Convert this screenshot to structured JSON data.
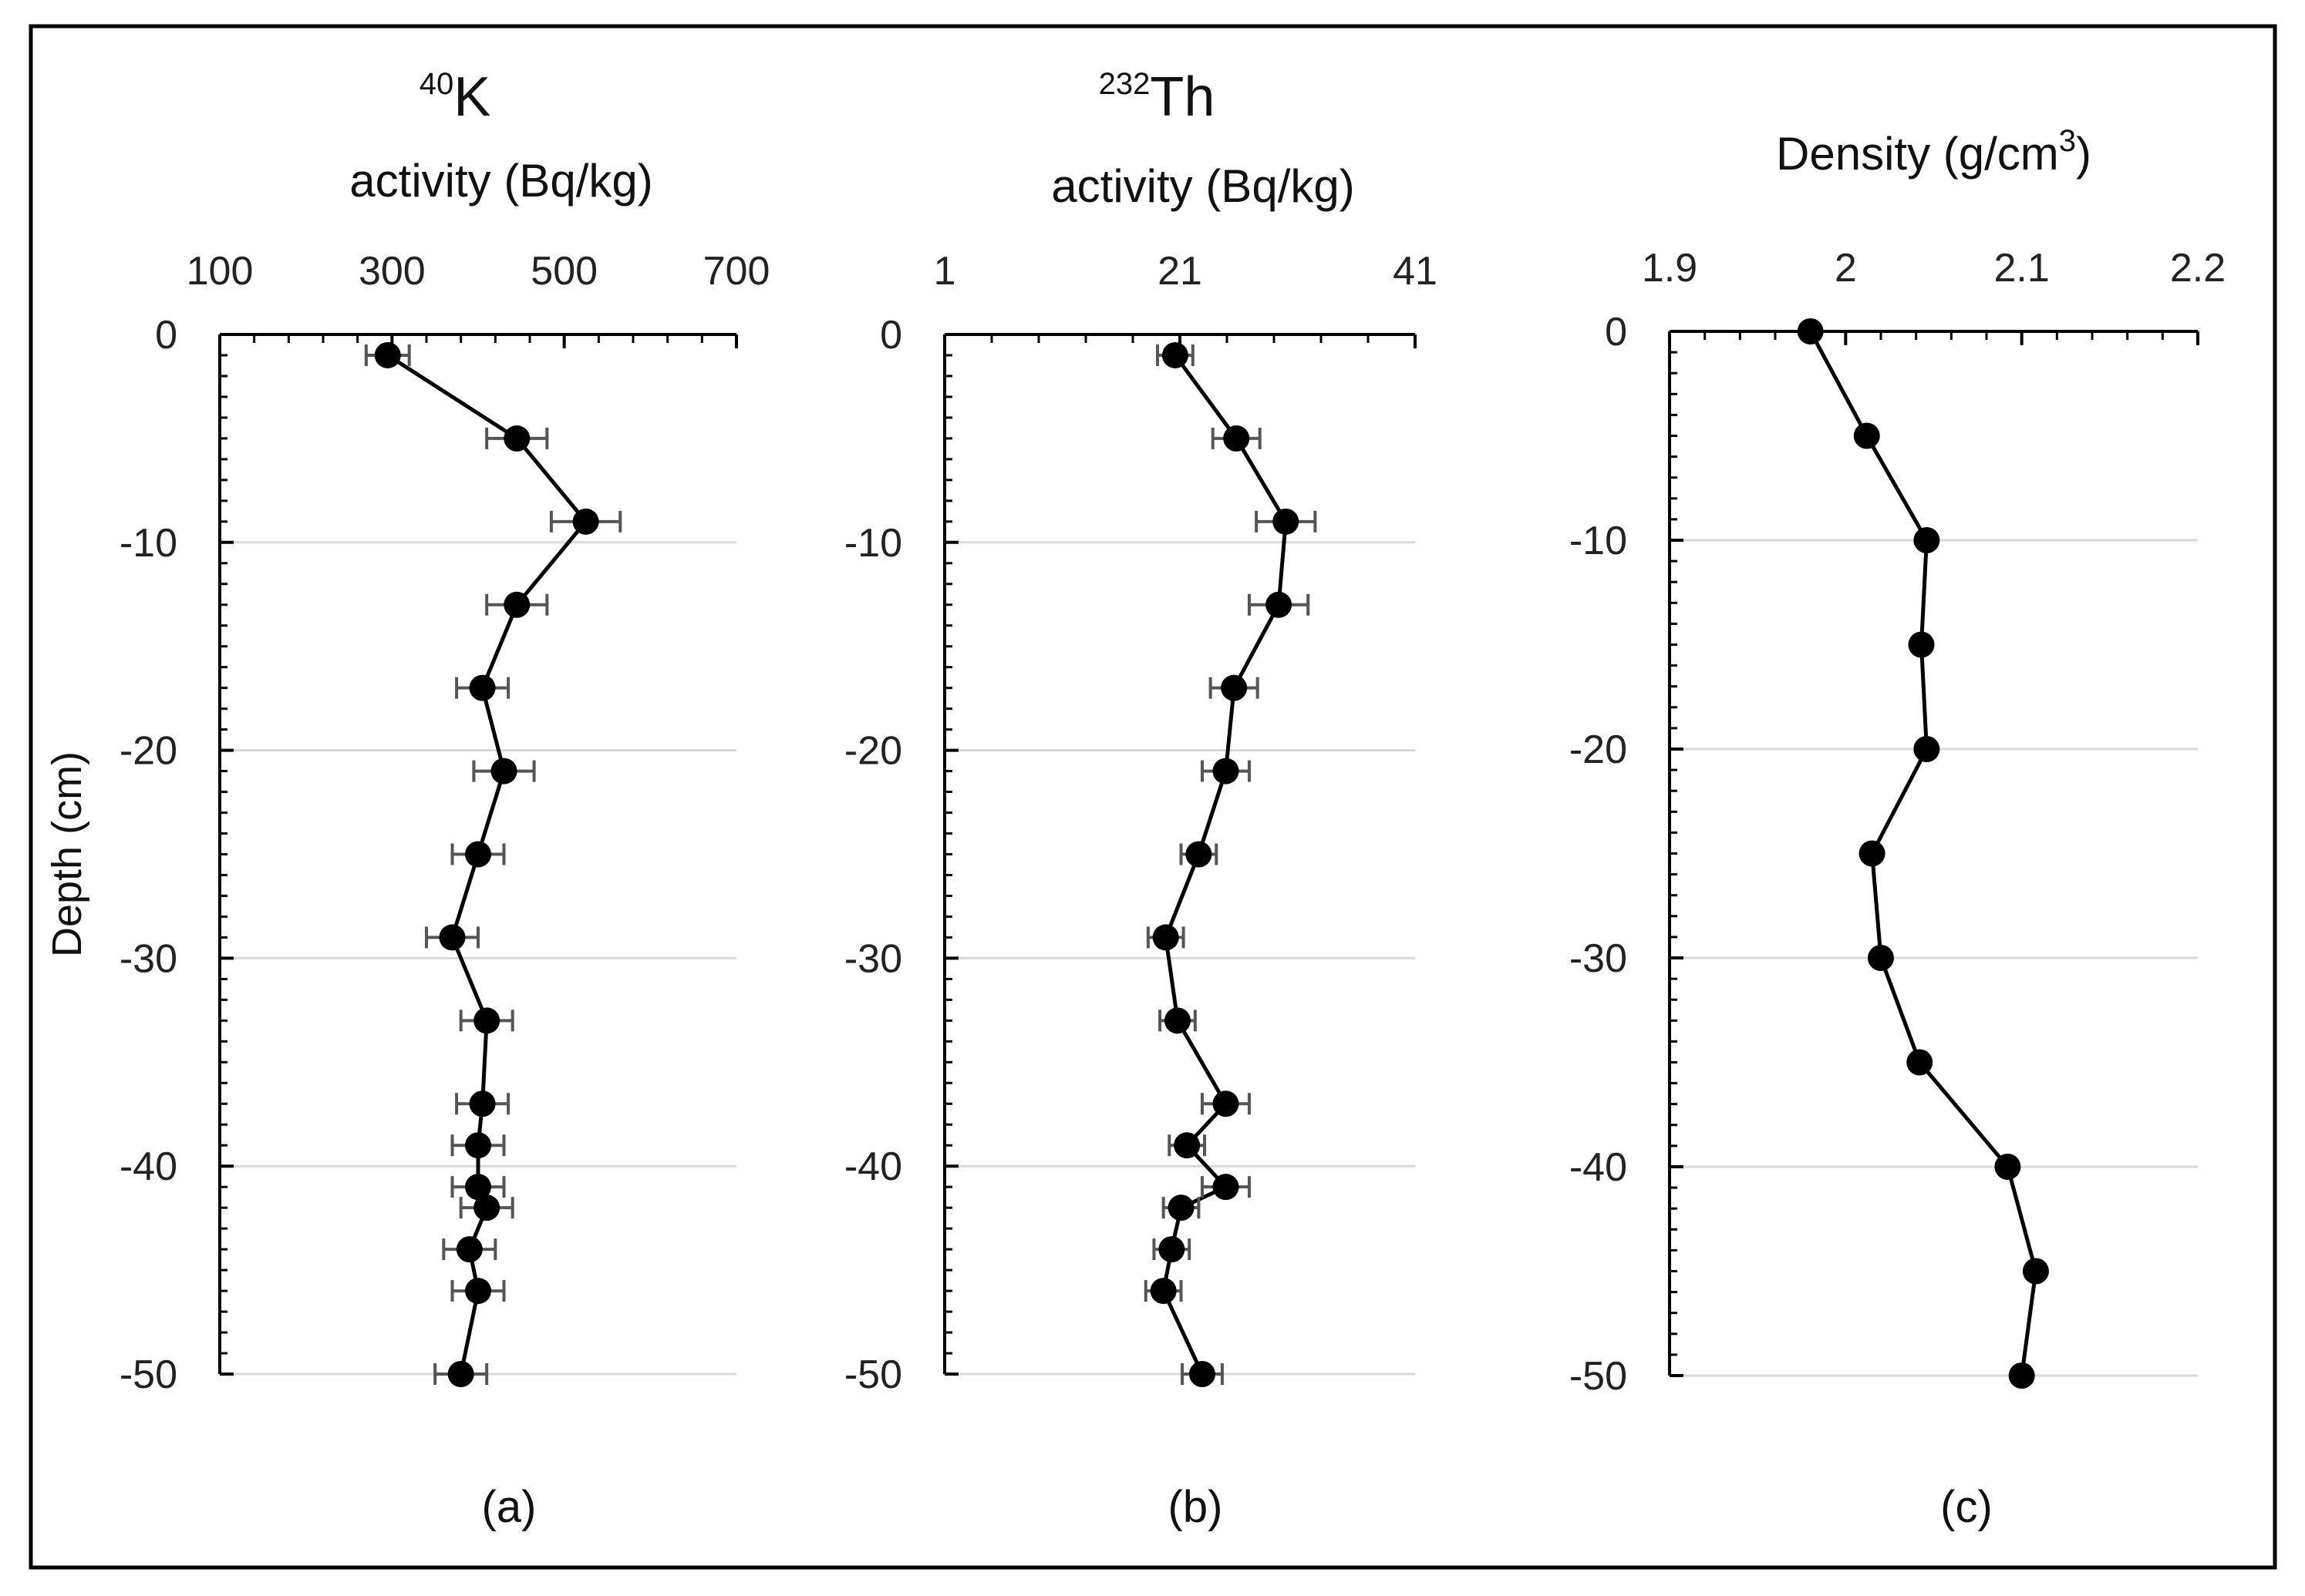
{
  "chart_data": [
    {
      "type": "line",
      "panel_label": "(a)",
      "title_superscript": "40",
      "title_symbol": "K",
      "xlabel": "activity (Bq/kg)",
      "ylabel": "Depth (cm)",
      "xlim": [
        100,
        700
      ],
      "xticks": [
        "100",
        "300",
        "500",
        "700"
      ],
      "xtick_values": [
        100,
        300,
        500,
        700
      ],
      "ylim": [
        -50,
        0
      ],
      "yticks": [
        "0",
        "-10",
        "-20",
        "-30",
        "-40",
        "-50"
      ],
      "ytick_values": [
        0,
        -10,
        -20,
        -30,
        -40,
        -50
      ],
      "series": [
        {
          "name": "40K activity",
          "y": [
            -1,
            -5,
            -9,
            -13,
            -17,
            -21,
            -25,
            -29,
            -33,
            -37,
            -39,
            -41,
            -42,
            -44,
            -46,
            -50
          ],
          "x": [
            295,
            445,
            525,
            445,
            405,
            430,
            400,
            370,
            410,
            405,
            400,
            400,
            410,
            390,
            400,
            380
          ],
          "error": [
            25,
            35,
            40,
            35,
            30,
            35,
            30,
            30,
            30,
            30,
            30,
            30,
            30,
            30,
            30,
            30
          ]
        }
      ]
    },
    {
      "type": "line",
      "panel_label": "(b)",
      "title_superscript": "232",
      "title_symbol": "Th",
      "xlabel": "activity (Bq/kg)",
      "ylabel": "",
      "xlim": [
        1,
        41
      ],
      "xticks": [
        "1",
        "21",
        "41"
      ],
      "xtick_values": [
        1,
        21,
        41
      ],
      "ylim": [
        -50,
        0
      ],
      "yticks": [
        "0",
        "-10",
        "-20",
        "-30",
        "-40",
        "-50"
      ],
      "ytick_values": [
        0,
        -10,
        -20,
        -30,
        -40,
        -50
      ],
      "series": [
        {
          "name": "232Th activity",
          "y": [
            -1,
            -5,
            -9,
            -13,
            -17,
            -21,
            -25,
            -29,
            -33,
            -37,
            -39,
            -41,
            -42,
            -44,
            -46,
            -50
          ],
          "x": [
            20.6,
            25.8,
            30.0,
            29.4,
            25.6,
            24.9,
            22.6,
            19.8,
            20.8,
            24.9,
            21.6,
            24.9,
            21.1,
            20.3,
            19.6,
            22.9
          ],
          "error": [
            1.5,
            2.0,
            2.5,
            2.5,
            2.0,
            2.0,
            1.5,
            1.5,
            1.5,
            2.0,
            1.5,
            2.0,
            1.5,
            1.5,
            1.5,
            1.7
          ]
        }
      ]
    },
    {
      "type": "line",
      "panel_label": "(c)",
      "title_main": "Density (g/cm",
      "title_superscript": "3",
      "title_end": ")",
      "xlabel": "",
      "ylabel": "",
      "xlim": [
        1.9,
        2.2
      ],
      "xticks": [
        "1.9",
        "2",
        "2.1",
        "2.2"
      ],
      "xtick_values": [
        1.9,
        2.0,
        2.1,
        2.2
      ],
      "ylim": [
        -50,
        0
      ],
      "yticks": [
        "0",
        "-10",
        "-20",
        "-30",
        "-40",
        "-50"
      ],
      "ytick_values": [
        0,
        -10,
        -20,
        -30,
        -40,
        -50
      ],
      "series": [
        {
          "name": "Density",
          "y": [
            0,
            -5,
            -10,
            -15,
            -20,
            -25,
            -30,
            -35,
            -40,
            -45,
            -50
          ],
          "x": [
            1.98,
            2.012,
            2.046,
            2.043,
            2.046,
            2.015,
            2.02,
            2.042,
            2.092,
            2.108,
            2.1
          ]
        }
      ]
    }
  ]
}
